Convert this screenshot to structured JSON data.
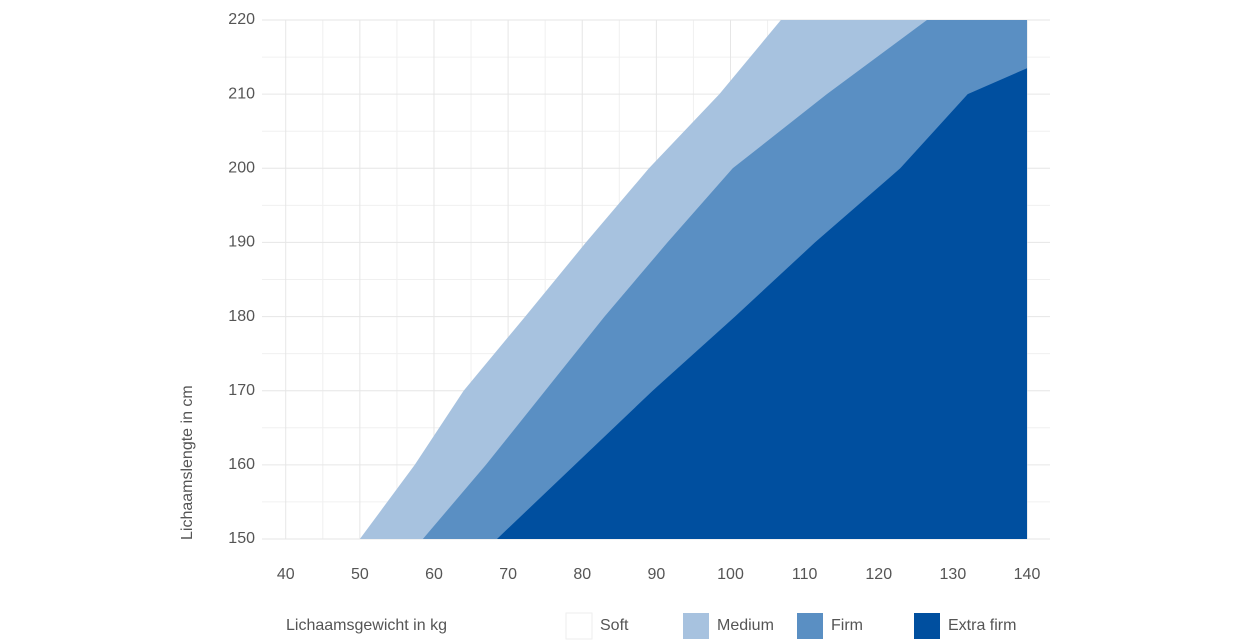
{
  "chart_data": {
    "type": "area",
    "x_label": "Lichaamsgewicht in kg",
    "y_label": "Lichaamslengte in cm",
    "xlim": [
      36.8,
      143.1
    ],
    "ylim": [
      150,
      220
    ],
    "xticks": [
      40,
      50,
      60,
      70,
      80,
      90,
      100,
      110,
      120,
      130,
      140
    ],
    "yticks": [
      150,
      160,
      170,
      180,
      190,
      200,
      210,
      220
    ],
    "grid": true,
    "minor_grid": true,
    "legend": "bottom",
    "series": [
      {
        "name": "Soft",
        "color": "#ffffff"
      },
      {
        "name": "Medium",
        "color": "#a7c2df",
        "x": [
          50,
          57.4,
          64,
          72.3,
          80.5,
          89,
          98.5,
          106.8
        ],
        "values": [
          150,
          160,
          170,
          180,
          190,
          200,
          210,
          220
        ]
      },
      {
        "name": "Firm",
        "color": "#5a8fc3",
        "x": [
          58.5,
          67,
          75,
          83,
          91.5,
          100.3,
          113,
          126.5
        ],
        "values": [
          150,
          160,
          170,
          180,
          190,
          200,
          210,
          220
        ]
      },
      {
        "name": "Extra firm",
        "color": "#004f9f",
        "x": [
          68.5,
          79,
          89.5,
          100.6,
          111.4,
          122.9,
          132,
          140
        ],
        "values": [
          150,
          160,
          170,
          180,
          190,
          200,
          210,
          213.5
        ]
      }
    ]
  }
}
